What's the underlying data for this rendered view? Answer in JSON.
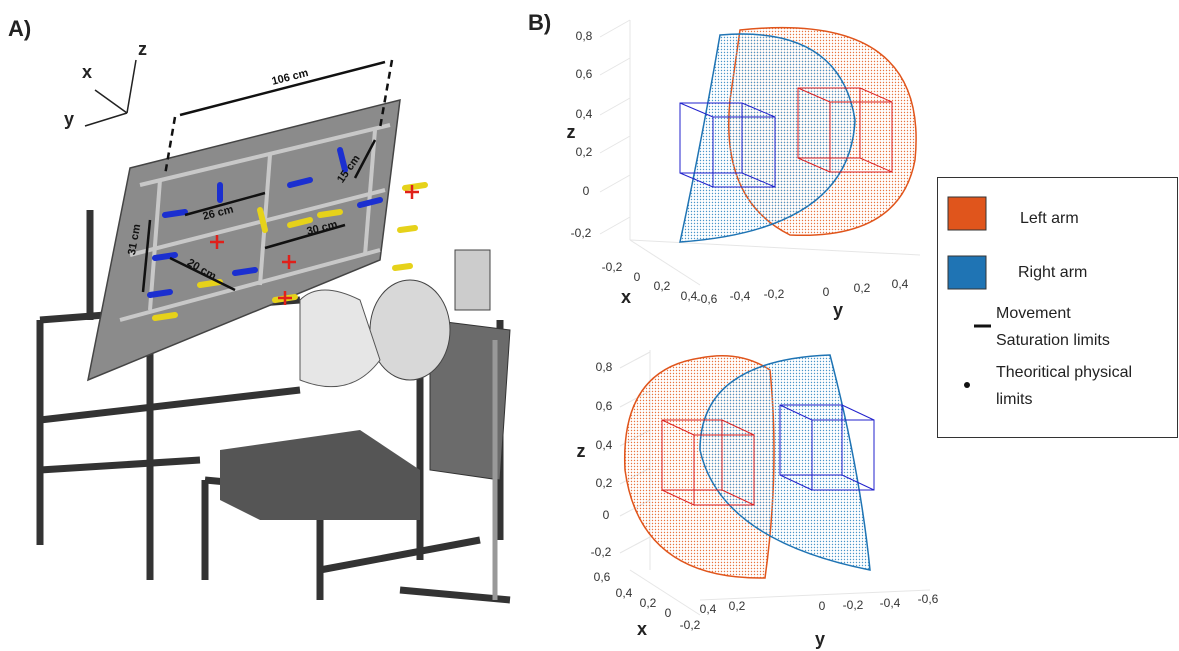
{
  "panel_a": {
    "label": "A)",
    "axes": {
      "x": "x",
      "y": "y",
      "z": "z"
    },
    "dimensions": [
      "106 cm",
      "15 cm",
      "26 cm",
      "30 cm",
      "31 cm",
      "20 cm"
    ]
  },
  "panel_b": {
    "label": "B)",
    "plots": [
      {
        "z_label": "z",
        "x_label": "x",
        "y_label": "y",
        "z_ticks": [
          "0,8",
          "0,6",
          "0,4",
          "0,2",
          "0",
          "-0,2"
        ],
        "x_ticks": [
          "-0,2",
          "0",
          "0,2",
          "0,4"
        ],
        "y_ticks": [
          "-0,6",
          "-0,4",
          "-0,2",
          "0",
          "0,2",
          "0,4"
        ]
      },
      {
        "z_label": "z",
        "x_label": "x",
        "y_label": "y",
        "z_ticks": [
          "0,8",
          "0,6",
          "0,4",
          "0,2",
          "0",
          "-0,2"
        ],
        "x_ticks": [
          "0,6",
          "0,4",
          "0,2",
          "0",
          "-0,2"
        ],
        "y_ticks": [
          "0,4",
          "0,2",
          "0",
          "-0,2",
          "-0,4",
          "-0,6"
        ]
      }
    ]
  },
  "legend": {
    "items": [
      {
        "label": "Left arm",
        "color": "#e0551c"
      },
      {
        "label": "Right arm",
        "color": "#1f74b4"
      }
    ],
    "saturation": [
      "Movement",
      "Saturation limits"
    ],
    "physical": [
      "Theoritical physical",
      "limits"
    ]
  }
}
